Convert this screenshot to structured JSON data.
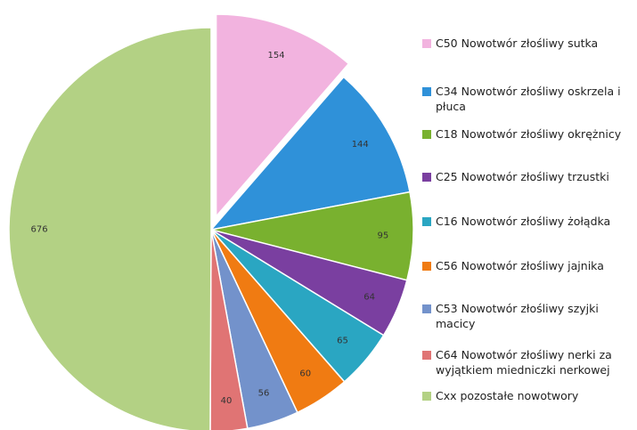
{
  "chart_data": {
    "type": "pie",
    "categories": [
      "C50 Nowotwór złośliwy sutka",
      "C34 Nowotwór złośliwy oskrzela i płuca",
      "C18 Nowotwór złośliwy okrężnicy",
      "C25 Nowotwór złośliwy trzustki",
      "C16 Nowotwór złośliwy żołądka",
      "C56 Nowotwór złośliwy jajnika",
      "C53 Nowotwór złośliwy szyjki macicy",
      "C64 Nowotwór złośliwy nerki za wyjątkiem miedniczki nerkowej",
      "Cxx pozostałe nowotwory"
    ],
    "values": [
      154,
      144,
      95,
      64,
      65,
      60,
      56,
      40,
      676
    ],
    "colors": [
      "#f2b3df",
      "#2f91d9",
      "#79b12f",
      "#7a3fa0",
      "#2aa6c2",
      "#f07b12",
      "#7392cb",
      "#e07474",
      "#b3d184"
    ],
    "exploded": [
      0
    ]
  }
}
